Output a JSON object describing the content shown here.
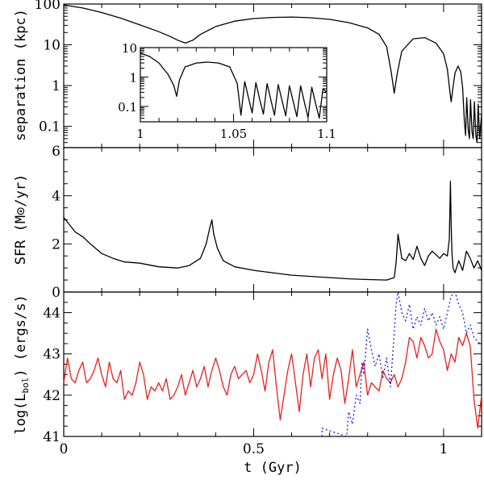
{
  "chart_data": [
    {
      "id": "separation",
      "type": "line",
      "ylabel": "separation (kpc)",
      "yscale": "log",
      "ylim": [
        0.03,
        100
      ],
      "xlim": [
        0,
        1.1
      ],
      "yticks": [
        {
          "value": 100,
          "label": "100"
        },
        {
          "value": 10,
          "label": "10"
        },
        {
          "value": 1,
          "label": "1"
        },
        {
          "value": 0.1,
          "label": "0.1"
        }
      ],
      "series": [
        {
          "name": "separation",
          "color": "#000000",
          "style": "solid",
          "x": [
            0,
            0.05,
            0.1,
            0.15,
            0.2,
            0.25,
            0.28,
            0.3,
            0.32,
            0.34,
            0.36,
            0.4,
            0.45,
            0.5,
            0.55,
            0.6,
            0.65,
            0.7,
            0.75,
            0.8,
            0.83,
            0.85,
            0.862,
            0.87,
            0.878,
            0.89,
            0.92,
            0.95,
            0.98,
            1.0,
            1.01,
            1.016,
            1.02,
            1.024,
            1.03,
            1.038,
            1.045,
            1.05,
            1.055,
            1.058,
            1.061,
            1.065,
            1.068,
            1.071,
            1.075,
            1.078,
            1.081,
            1.085,
            1.088,
            1.091,
            1.095,
            1.1
          ],
          "y": [
            95,
            80,
            62,
            45,
            31,
            21,
            16,
            13,
            11,
            13,
            18,
            28,
            38,
            44,
            47,
            48,
            46,
            42,
            35,
            26,
            18,
            9,
            2.2,
            0.65,
            2.0,
            7,
            14,
            15,
            11,
            6,
            2.5,
            0.8,
            0.4,
            0.8,
            2.0,
            3.0,
            2.2,
            0.9,
            0.12,
            0.06,
            0.5,
            0.08,
            0.05,
            0.45,
            0.07,
            0.05,
            0.4,
            0.06,
            0.04,
            0.35,
            0.05,
            0.2
          ]
        }
      ]
    },
    {
      "id": "separation-inset",
      "type": "line",
      "yscale": "log",
      "xlim": [
        1.0,
        1.1
      ],
      "ylim": [
        0.03,
        10
      ],
      "xticks": [
        {
          "value": 1,
          "label": "1"
        },
        {
          "value": 1.05,
          "label": "1.05"
        },
        {
          "value": 1.1,
          "label": "1.1"
        }
      ],
      "yticks": [
        {
          "value": 10,
          "label": "10"
        },
        {
          "value": 1,
          "label": "1"
        },
        {
          "value": 0.1,
          "label": "0.1"
        }
      ],
      "series": [
        {
          "name": "separation-zoom",
          "color": "#000000",
          "style": "solid",
          "x": [
            1.0,
            1.005,
            1.01,
            1.015,
            1.018,
            1.0195,
            1.021,
            1.024,
            1.03,
            1.036,
            1.042,
            1.048,
            1.052,
            1.054,
            1.056,
            1.058,
            1.06,
            1.062,
            1.064,
            1.066,
            1.068,
            1.07,
            1.072,
            1.074,
            1.076,
            1.078,
            1.08,
            1.082,
            1.084,
            1.086,
            1.088,
            1.09,
            1.092,
            1.094,
            1.096,
            1.098,
            1.1
          ],
          "y": [
            6.5,
            5.0,
            3.0,
            1.2,
            0.5,
            0.22,
            0.8,
            2.2,
            3.0,
            3.2,
            3.0,
            2.2,
            0.6,
            0.05,
            0.7,
            0.2,
            0.06,
            0.65,
            0.18,
            0.055,
            0.6,
            0.17,
            0.05,
            0.55,
            0.16,
            0.048,
            0.5,
            0.15,
            0.045,
            0.5,
            0.14,
            0.042,
            0.45,
            0.13,
            0.04,
            0.4,
            0.3
          ]
        }
      ]
    },
    {
      "id": "sfr",
      "type": "line",
      "ylabel": "SFR (M⊙/yr)",
      "ylim": [
        0,
        6
      ],
      "xlim": [
        0,
        1.1
      ],
      "yticks": [
        {
          "value": 0,
          "label": "0"
        },
        {
          "value": 2,
          "label": "2"
        },
        {
          "value": 4,
          "label": "4"
        },
        {
          "value": 6,
          "label": "6"
        }
      ],
      "series": [
        {
          "name": "SFR",
          "color": "#000000",
          "style": "solid",
          "x": [
            0,
            0.01,
            0.02,
            0.03,
            0.05,
            0.07,
            0.1,
            0.13,
            0.16,
            0.2,
            0.25,
            0.3,
            0.33,
            0.36,
            0.375,
            0.385,
            0.39,
            0.395,
            0.405,
            0.42,
            0.45,
            0.5,
            0.55,
            0.6,
            0.65,
            0.7,
            0.75,
            0.8,
            0.85,
            0.87,
            0.875,
            0.88,
            0.885,
            0.89,
            0.9,
            0.91,
            0.92,
            0.93,
            0.94,
            0.95,
            0.96,
            0.97,
            0.98,
            0.99,
            1.0,
            1.01,
            1.015,
            1.018,
            1.02,
            1.022,
            1.025,
            1.03,
            1.04,
            1.05,
            1.06,
            1.07,
            1.08,
            1.09,
            1.1
          ],
          "y": [
            3.1,
            2.9,
            2.7,
            2.5,
            2.3,
            2.0,
            1.6,
            1.4,
            1.25,
            1.2,
            1.05,
            1.0,
            1.1,
            1.4,
            2.0,
            2.7,
            3.0,
            2.4,
            1.8,
            1.3,
            1.05,
            0.9,
            0.8,
            0.7,
            0.65,
            0.6,
            0.55,
            0.52,
            0.5,
            0.6,
            1.2,
            2.4,
            1.9,
            1.4,
            1.3,
            1.6,
            1.35,
            1.9,
            1.4,
            1.1,
            1.5,
            1.7,
            1.55,
            1.4,
            1.6,
            1.5,
            2.2,
            4.6,
            2.8,
            1.6,
            1.0,
            0.8,
            1.3,
            0.9,
            1.7,
            1.4,
            1.0,
            1.3,
            0.9
          ]
        }
      ]
    },
    {
      "id": "lbol",
      "type": "line",
      "ylabel": "log(L_bol) (ergs/s)",
      "ylabel_parts": {
        "prefix": "log(L",
        "sub": "bol",
        "suffix": ")  (ergs/s)"
      },
      "ylim": [
        41,
        44.5
      ],
      "xlim": [
        0,
        1.1
      ],
      "xlabel": "t (Gyr)",
      "xticks": [
        {
          "value": 0,
          "label": "0"
        },
        {
          "value": 0.5,
          "label": "0.5"
        },
        {
          "value": 1,
          "label": "1"
        }
      ],
      "yticks": [
        {
          "value": 41,
          "label": "41"
        },
        {
          "value": 42,
          "label": "42"
        },
        {
          "value": 43,
          "label": "43"
        },
        {
          "value": 44,
          "label": "44"
        }
      ],
      "series": [
        {
          "name": "solid-red",
          "color": "#e8201e",
          "style": "solid",
          "x": [
            0,
            0.01,
            0.02,
            0.03,
            0.04,
            0.05,
            0.06,
            0.07,
            0.08,
            0.09,
            0.1,
            0.11,
            0.12,
            0.13,
            0.14,
            0.15,
            0.16,
            0.17,
            0.18,
            0.19,
            0.2,
            0.21,
            0.22,
            0.23,
            0.24,
            0.25,
            0.26,
            0.27,
            0.28,
            0.29,
            0.3,
            0.31,
            0.32,
            0.33,
            0.34,
            0.35,
            0.36,
            0.37,
            0.38,
            0.39,
            0.4,
            0.41,
            0.42,
            0.43,
            0.44,
            0.45,
            0.46,
            0.47,
            0.48,
            0.49,
            0.5,
            0.51,
            0.52,
            0.53,
            0.54,
            0.55,
            0.56,
            0.57,
            0.58,
            0.59,
            0.6,
            0.61,
            0.62,
            0.63,
            0.64,
            0.65,
            0.66,
            0.67,
            0.68,
            0.69,
            0.7,
            0.71,
            0.72,
            0.73,
            0.74,
            0.75,
            0.76,
            0.77,
            0.78,
            0.79,
            0.8,
            0.81,
            0.82,
            0.83,
            0.84,
            0.85,
            0.86,
            0.87,
            0.88,
            0.89,
            0.9,
            0.91,
            0.92,
            0.93,
            0.94,
            0.95,
            0.96,
            0.97,
            0.98,
            0.99,
            1.0,
            1.01,
            1.02,
            1.03,
            1.04,
            1.05,
            1.06,
            1.07,
            1.08,
            1.09,
            1.1
          ],
          "y": [
            42.3,
            42.9,
            42.4,
            42.3,
            42.6,
            42.8,
            42.3,
            42.4,
            42.6,
            42.9,
            42.5,
            42.2,
            42.8,
            42.4,
            42.3,
            42.6,
            41.9,
            42.1,
            42.0,
            42.3,
            42.8,
            42.5,
            41.9,
            42.2,
            42.1,
            42.3,
            42.1,
            42.4,
            41.9,
            42.0,
            42.2,
            42.5,
            42.0,
            42.3,
            42.6,
            42.2,
            42.4,
            42.7,
            42.2,
            42.6,
            42.9,
            42.6,
            42.2,
            42.0,
            42.5,
            42.7,
            42.4,
            42.5,
            42.6,
            42.3,
            42.5,
            43.0,
            42.6,
            42.1,
            42.8,
            43.1,
            42.2,
            41.4,
            42.0,
            42.6,
            43.0,
            42.3,
            41.6,
            42.5,
            43.0,
            42.2,
            42.9,
            43.1,
            42.4,
            43.0,
            41.9,
            42.5,
            42.9,
            42.6,
            41.8,
            42.4,
            43.1,
            42.2,
            42.5,
            42.8,
            42.0,
            42.3,
            42.2,
            42.1,
            42.6,
            42.4,
            42.3,
            42.5,
            42.2,
            42.4,
            42.8,
            43.4,
            43.3,
            42.9,
            43.4,
            43.2,
            42.9,
            43.0,
            43.6,
            43.3,
            43.1,
            42.6,
            43.0,
            42.8,
            43.4,
            43.2,
            43.5,
            43.2,
            41.9,
            41.2,
            42.0
          ]
        },
        {
          "name": "dotted-blue",
          "color": "#1a1adf",
          "style": "dotted",
          "x": [
            0.68,
            0.68,
            0.745,
            0.75,
            0.76,
            0.77,
            0.78,
            0.785,
            0.79,
            0.8,
            0.81,
            0.82,
            0.83,
            0.84,
            0.85,
            0.86,
            0.87,
            0.875,
            0.88,
            0.89,
            0.9,
            0.91,
            0.92,
            0.93,
            0.94,
            0.95,
            0.96,
            0.97,
            0.98,
            0.99,
            1.0,
            1.01,
            1.02,
            1.03,
            1.04,
            1.05,
            1.06,
            1.07,
            1.08,
            1.09,
            1.1
          ],
          "y": [
            41.0,
            41.2,
            41.0,
            41.6,
            41.3,
            42.0,
            41.8,
            42.8,
            42.5,
            43.6,
            43.1,
            42.7,
            43.0,
            42.4,
            42.9,
            42.2,
            43.5,
            44.2,
            44.5,
            44.0,
            43.8,
            44.2,
            43.6,
            43.9,
            43.7,
            44.1,
            43.8,
            44.0,
            43.7,
            43.9,
            43.6,
            44.0,
            44.4,
            44.6,
            44.2,
            44.0,
            43.5,
            43.7,
            43.4,
            43.3,
            43.2
          ]
        }
      ]
    }
  ]
}
